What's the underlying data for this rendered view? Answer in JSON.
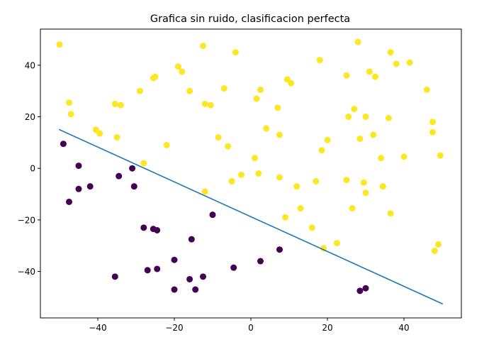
{
  "chart_data": {
    "type": "scatter",
    "title": "Grafica sin ruido, clasificacion perfecta",
    "xlabel": "",
    "ylabel": "",
    "xlim": [
      -55,
      55
    ],
    "ylim": [
      -58,
      54
    ],
    "xticks": [
      -40,
      -20,
      0,
      20,
      40
    ],
    "yticks": [
      -40,
      -20,
      0,
      20,
      40
    ],
    "grid": false,
    "colors": {
      "class_0": "#440154",
      "class_1": "#fde725",
      "line": "#1f77b4",
      "axes": "#000000"
    },
    "series": [
      {
        "class": "class_0",
        "x": [
          -49,
          -47.5,
          -45,
          -45,
          -42,
          -35.5,
          -34.5,
          -31,
          -30.5,
          -28,
          -27,
          -25.5,
          -24.5,
          -24.5,
          -20,
          -20,
          -16,
          -15.5,
          -14.5,
          -12.5,
          -10,
          -4.5,
          2.5,
          7.5,
          28.5,
          30
        ],
        "y": [
          9.5,
          -13,
          1,
          -8,
          -7,
          -42,
          -3,
          0,
          -7,
          -23,
          -39.5,
          -23.5,
          -24,
          -39,
          -35.5,
          -47,
          -43,
          -27.5,
          -47,
          -42,
          -18,
          -38.5,
          -36,
          -31.5,
          -47.5,
          -46.5
        ]
      },
      {
        "class": "class_1",
        "x": [
          -50,
          -47.5,
          -47,
          -40.5,
          -39.5,
          -35.5,
          -35,
          -34,
          -29,
          -28,
          -25.5,
          -25,
          -22,
          -19,
          -18,
          -16,
          -12.5,
          -12,
          -12,
          -10.5,
          -8.5,
          -7,
          -6,
          -5,
          -4,
          -2.5,
          1,
          1.5,
          2,
          2.5,
          4,
          7,
          7.5,
          7.5,
          9,
          9.5,
          10.5,
          12,
          13,
          16,
          17,
          18,
          18.5,
          19,
          20,
          22.5,
          25,
          25,
          25.5,
          26.5,
          27,
          28,
          28.5,
          29.5,
          30,
          30,
          31,
          32,
          32.5,
          34,
          34.5,
          34.5,
          36,
          36.5,
          36.5,
          38,
          40,
          41.5,
          46,
          47.5,
          47.5,
          48,
          49,
          49.5
        ],
        "y": [
          48,
          25.5,
          21,
          15,
          13.5,
          25,
          12,
          24.5,
          30,
          2,
          35,
          35.5,
          9,
          39.5,
          37.5,
          30,
          47.5,
          -9,
          25,
          24.5,
          12,
          31,
          8.5,
          -5,
          45,
          -2.5,
          4,
          27,
          -2,
          30.5,
          15.5,
          23.5,
          -3.5,
          13,
          -19,
          34.5,
          33,
          -7,
          -15.5,
          -23,
          -5,
          42,
          7,
          -31,
          11,
          -29,
          36,
          -4.5,
          20,
          -15.5,
          23,
          49,
          11.5,
          -5.5,
          -9.5,
          20,
          37.5,
          13,
          35.5,
          4,
          -7,
          -7,
          19.5,
          -17.5,
          45,
          40.5,
          4.5,
          41,
          30.5,
          18,
          14,
          -32,
          -29.5,
          5
        ]
      }
    ],
    "decision_line": {
      "x": [
        -50,
        50
      ],
      "y": [
        15,
        -52.5
      ]
    }
  }
}
